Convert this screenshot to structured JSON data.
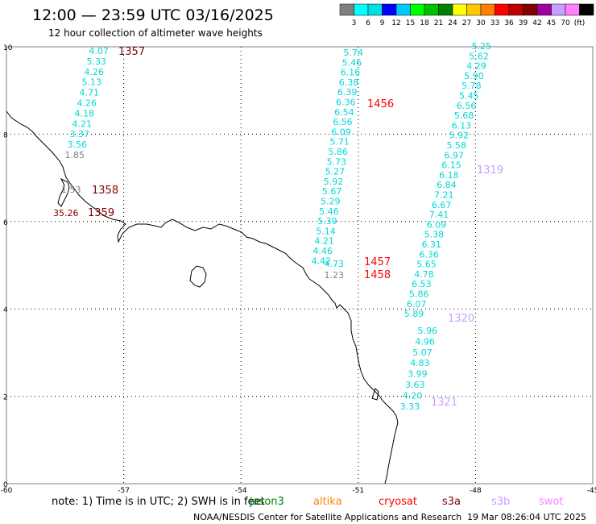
{
  "header": {
    "title": "12:00 — 23:59 UTC 03/16/2025",
    "subtitle": "12 hour collection of altimeter wave heights"
  },
  "legend": {
    "labels": [
      "3",
      "6",
      "9",
      "12",
      "15",
      "18",
      "21",
      "24",
      "27",
      "30",
      "33",
      "36",
      "39",
      "42",
      "45",
      "70",
      "(ft)"
    ],
    "colors": [
      "#808080",
      "#00ffff",
      "#00e0e0",
      "#0000ff",
      "#00c8ff",
      "#00ff00",
      "#00c000",
      "#008000",
      "#ffff00",
      "#ffc800",
      "#ff8000",
      "#ff0000",
      "#c00000",
      "#800000",
      "#a000a0",
      "#c8a0ff",
      "#ff80ff",
      "#000000"
    ]
  },
  "axes": {
    "x_ticks": [
      "-60",
      "-57",
      "-54",
      "-51",
      "-48",
      "-45"
    ],
    "y_ticks": [
      "0",
      "2",
      "4",
      "6",
      "8",
      "10"
    ],
    "lon_range": [
      -60,
      -45
    ],
    "lat_range": [
      0,
      10
    ]
  },
  "tracks": [
    {
      "id": "pass-1357",
      "time_label": "1357",
      "time_color": "#800000",
      "values": [
        "4.07",
        "5.33",
        "4.26",
        "5.13",
        "4.71",
        "4.26",
        "4.18",
        "4.21",
        "3.37",
        "3.56",
        "1.85"
      ],
      "value_colors": [
        "cyan",
        "cyan",
        "cyan",
        "cyan",
        "cyan",
        "cyan",
        "cyan",
        "cyan",
        "cyan",
        "cyan",
        "gray"
      ]
    },
    {
      "id": "pass-1358",
      "time_label": "1358",
      "time_color": "#800000",
      "values": [
        "1.53"
      ],
      "value_colors": [
        "gray"
      ]
    },
    {
      "id": "pass-1359",
      "time_label": "1359",
      "time_color": "#800000",
      "values": [
        "35.26"
      ],
      "value_colors": [
        "maroon"
      ]
    },
    {
      "id": "pass-1456",
      "time_label": "1456",
      "time_color": "#ff0000",
      "values": [
        "5.74",
        "5.46",
        "6.16",
        "6.38",
        "6.39",
        "6.36",
        "6.54",
        "6.56",
        "6.09",
        "5.71",
        "5.86",
        "5.73",
        "5.27",
        "5.92",
        "5.67",
        "5.29",
        "5.46",
        "5.39",
        "5.14",
        "4.21",
        "4.46",
        "4.42"
      ],
      "value_colors": [
        "cyan",
        "cyan",
        "cyan",
        "cyan",
        "cyan",
        "cyan",
        "cyan",
        "cyan",
        "cyan",
        "cyan",
        "cyan",
        "cyan",
        "cyan",
        "cyan",
        "cyan",
        "cyan",
        "cyan",
        "cyan",
        "cyan",
        "cyan",
        "cyan",
        "cyan"
      ]
    },
    {
      "id": "pass-1457",
      "time_label": "1457",
      "time_color": "#ff0000",
      "values": [
        "4.73"
      ],
      "value_colors": [
        "cyan"
      ]
    },
    {
      "id": "pass-1458",
      "time_label": "1458",
      "time_color": "#ff0000",
      "values": [
        "1.23"
      ],
      "value_colors": [
        "gray"
      ]
    },
    {
      "id": "pass-1319",
      "time_label": "1319",
      "time_color": "#c8a0ff",
      "values": [
        "5.25",
        "5.62",
        "4.29",
        "5.90",
        "5.78",
        "5.45",
        "6.56",
        "5.68",
        "6.13",
        "5.92",
        "5.58",
        "6.97",
        "6.15",
        "6.18",
        "6.84",
        "7.21",
        "6.67",
        "7.41",
        "6.09",
        "5.38",
        "6.31",
        "6.36",
        "5.65",
        "4.78",
        "6.53",
        "5.86",
        "6.07",
        "5.89"
      ],
      "value_colors": [
        "cyan",
        "cyan",
        "cyan",
        "cyan",
        "cyan",
        "cyan",
        "cyan",
        "cyan",
        "cyan",
        "cyan",
        "cyan",
        "cyan",
        "cyan",
        "cyan",
        "cyan",
        "cyan",
        "cyan",
        "cyan",
        "cyan",
        "cyan",
        "cyan",
        "cyan",
        "cyan",
        "cyan",
        "cyan",
        "cyan",
        "cyan",
        "cyan"
      ]
    },
    {
      "id": "pass-1320",
      "time_label": "1320",
      "time_color": "#c8a0ff",
      "values": [
        "5.96",
        "4.96",
        "5.07",
        "4.83",
        "3.99",
        "3.63",
        "4.20",
        "3.33"
      ],
      "value_colors": [
        "cyan",
        "cyan",
        "cyan",
        "cyan",
        "cyan",
        "cyan",
        "cyan",
        "cyan"
      ]
    },
    {
      "id": "pass-1321",
      "time_label": "1321",
      "time_color": "#c8a0ff",
      "values": [],
      "value_colors": []
    }
  ],
  "note": {
    "text": "note:  1) Time is in UTC;  2) SWH is in feet"
  },
  "satellites": [
    {
      "name": "jason3",
      "color": "#008000"
    },
    {
      "name": "altika",
      "color": "#ff8000"
    },
    {
      "name": "cryosat",
      "color": "#ff0000"
    },
    {
      "name": "s3a",
      "color": "#800000"
    },
    {
      "name": "s3b",
      "color": "#c8a0ff"
    },
    {
      "name": "swot",
      "color": "#ff80ff"
    }
  ],
  "footer": {
    "credit": "NOAA/NESDIS Center for Satellite Applications and Research",
    "generated": "19 Mar 08:26:04 UTC 2025"
  },
  "palette": {
    "cyan": "#00d8d8",
    "gray": "#808080",
    "maroon": "#800000",
    "coast": "#000000",
    "grid": "#000000"
  }
}
